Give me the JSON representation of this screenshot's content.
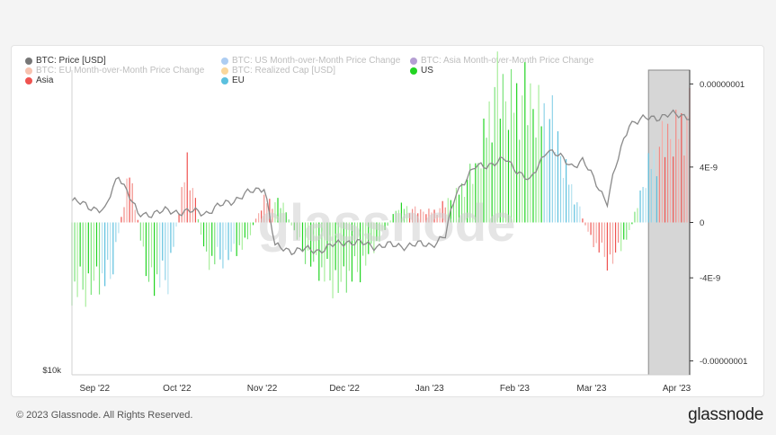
{
  "chart_data": {
    "type": "bar",
    "watermark": "glassnode",
    "legend": [
      {
        "label": "BTC: Price [USD]",
        "color": "#777777",
        "faded": false
      },
      {
        "label": "BTC: US Month-over-Month Price Change",
        "color": "#4a90e2",
        "faded": true
      },
      {
        "label": "BTC: Asia Month-over-Month Price Change",
        "color": "#5b2a9e",
        "faded": true
      },
      {
        "label": "BTC: EU Month-over-Month Price Change",
        "color": "#f07b4f",
        "faded": true
      },
      {
        "label": "BTC: Realized Cap [USD]",
        "color": "#f5a623",
        "faded": true
      },
      {
        "label": "US",
        "color": "#22d422",
        "faded": false
      },
      {
        "label": "Asia",
        "color": "#ef5350",
        "faded": false
      },
      {
        "label": "EU",
        "color": "#5bc0de",
        "faded": false
      }
    ],
    "x_ticks": [
      "Sep '22",
      "Oct '22",
      "Nov '22",
      "Dec '22",
      "Jan '23",
      "Feb '23",
      "Mar '23",
      "Apr '23"
    ],
    "y_left_ticks": [
      "$10k"
    ],
    "y_right_ticks": [
      "0.00000001",
      "4E-9",
      "0",
      "-4E-9",
      "-0.00000001"
    ],
    "y_right_range": [
      -1.1e-08,
      1.1e-08
    ],
    "highlight_range": [
      "2023-03-25",
      "2023-04-09"
    ],
    "date_range": [
      "2022-08-27",
      "2023-04-09"
    ],
    "regional_mom_change": {
      "dates_weekly": [
        "2022-08-27",
        "2022-09-03",
        "2022-09-10",
        "2022-09-17",
        "2022-09-24",
        "2022-10-01",
        "2022-10-08",
        "2022-10-15",
        "2022-10-22",
        "2022-10-29",
        "2022-11-05",
        "2022-11-12",
        "2022-11-19",
        "2022-11-26",
        "2022-12-03",
        "2022-12-10",
        "2022-12-17",
        "2022-12-24",
        "2022-12-31",
        "2023-01-07",
        "2023-01-14",
        "2023-01-21",
        "2023-01-28",
        "2023-02-04",
        "2023-02-11",
        "2023-02-18",
        "2023-02-25",
        "2023-03-04",
        "2023-03-11",
        "2023-03-18",
        "2023-03-25",
        "2023-04-01",
        "2023-04-08"
      ],
      "values": [
        -6e-09,
        -5.5e-09,
        -4.8e-09,
        4.5e-09,
        -5.5e-09,
        -4.8e-09,
        5.5e-09,
        -3.5e-09,
        -3e-09,
        -2e-09,
        2e-09,
        1.5e-09,
        -2.5e-09,
        -4.5e-09,
        -5.5e-09,
        -4e-09,
        -1.5e-09,
        1.5e-09,
        1e-09,
        1e-09,
        2.5e-09,
        4.5e-09,
        1.15e-08,
        1.1e-08,
        1.05e-08,
        8.5e-09,
        3e-09,
        -1.5e-09,
        -3.5e-09,
        -1e-09,
        5e-09,
        7.5e-09,
        9e-09
      ],
      "dominant_region": [
        "US",
        "US",
        "EU",
        "Asia",
        "US",
        "EU",
        "Asia",
        "US",
        "EU",
        "US",
        "Asia",
        "US",
        "US",
        "US",
        "US",
        "US",
        "US",
        "US",
        "Asia",
        "Asia",
        "US",
        "US",
        "US",
        "US",
        "US",
        "EU",
        "EU",
        "Asia",
        "Asia",
        "US",
        "EU",
        "Asia",
        "Asia"
      ]
    },
    "price_usd": {
      "dates": [
        "2022-08-27",
        "2022-09-08",
        "2022-09-13",
        "2022-09-20",
        "2022-10-01",
        "2022-10-15",
        "2022-10-25",
        "2022-11-05",
        "2022-11-09",
        "2022-11-15",
        "2022-11-25",
        "2022-12-05",
        "2022-12-15",
        "2022-12-25",
        "2023-01-05",
        "2023-01-10",
        "2023-01-14",
        "2023-01-21",
        "2023-02-01",
        "2023-02-10",
        "2023-02-16",
        "2023-02-25",
        "2023-03-01",
        "2023-03-10",
        "2023-03-12",
        "2023-03-18",
        "2023-03-25",
        "2023-04-01",
        "2023-04-09"
      ],
      "values": [
        20100,
        19300,
        22400,
        19000,
        19300,
        19200,
        20200,
        21300,
        16700,
        16500,
        16500,
        17100,
        16800,
        16800,
        16900,
        17400,
        20900,
        23000,
        23700,
        21700,
        24800,
        23200,
        23600,
        20000,
        22000,
        27500,
        28000,
        28400,
        28300
      ]
    }
  },
  "footer": {
    "copyright": "© 2023 Glassnode. All Rights Reserved.",
    "brand": "glassnode"
  }
}
